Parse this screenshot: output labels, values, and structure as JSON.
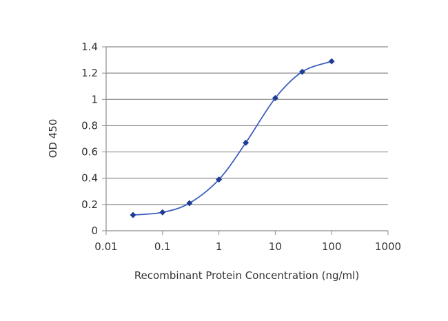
{
  "chart_data": {
    "type": "line",
    "title": "",
    "xlabel": "Recombinant Protein Concentration (ng/ml)",
    "ylabel": "OD 450",
    "xscale": "log",
    "xlim": [
      0.01,
      1000
    ],
    "ylim": [
      0,
      1.4
    ],
    "grid": "horizontal",
    "xticks": [
      0.01,
      0.1,
      1,
      10,
      100,
      1000
    ],
    "xtick_labels": [
      "0.01",
      "0.1",
      "1",
      "10",
      "100",
      "1000"
    ],
    "yticks": [
      0,
      0.2,
      0.4,
      0.6,
      0.8,
      1,
      1.2,
      1.4
    ],
    "ytick_labels": [
      "0",
      "0.2",
      "0.4",
      "0.6",
      "0.8",
      "1",
      "1.2",
      "1.4"
    ],
    "series": [
      {
        "x": [
          0.03,
          0.1,
          0.3,
          1,
          3,
          10,
          30,
          100
        ],
        "y": [
          0.12,
          0.14,
          0.21,
          0.39,
          0.67,
          1.01,
          1.21,
          1.29
        ],
        "color": "#1f3c96"
      }
    ],
    "colors": {
      "line": "#3f5fc0",
      "marker": "#1f3c96",
      "grid": "#8c8c8c",
      "axis": "#8c8c8c",
      "text": "#333333"
    }
  }
}
